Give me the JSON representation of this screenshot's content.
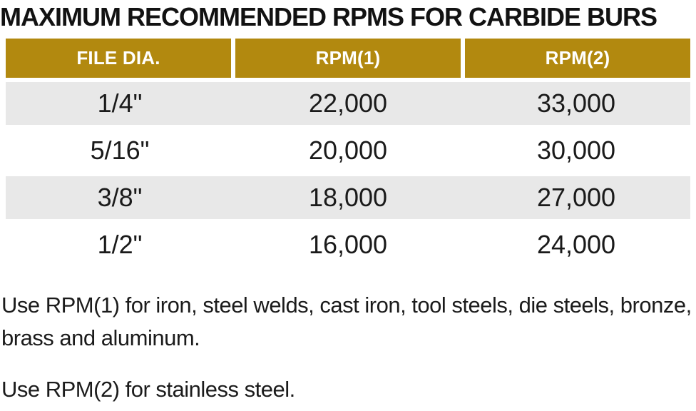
{
  "title": "MAXIMUM RECOMMENDED RPMS FOR CARBIDE BURS",
  "table": {
    "columns": [
      "FILE DIA.",
      "RPM(1)",
      "RPM(2)"
    ],
    "rows": [
      {
        "dia": "1/4\"",
        "rpm1": "22,000",
        "rpm2": "33,000"
      },
      {
        "dia": "5/16\"",
        "rpm1": "20,000",
        "rpm2": "30,000"
      },
      {
        "dia": "3/8\"",
        "rpm1": "18,000",
        "rpm2": "27,000"
      },
      {
        "dia": "1/2\"",
        "rpm1": "16,000",
        "rpm2": "24,000"
      }
    ]
  },
  "notes": [
    "Use RPM(1) for iron, steel welds, cast iron, tool steels, die steels, bronze, brass and aluminum.",
    "Use RPM(2) for stainless steel."
  ],
  "colors": {
    "header_bg": "#B2890F",
    "row_alt_bg": "#E8E8E8",
    "header_text": "#FFFFFF",
    "body_text": "#1A1A1A"
  },
  "chart_data": {
    "type": "table",
    "title": "MAXIMUM RECOMMENDED RPMS FOR CARBIDE BURS",
    "columns": [
      "FILE DIA.",
      "RPM(1)",
      "RPM(2)"
    ],
    "rows": [
      [
        "1/4\"",
        "22,000",
        "33,000"
      ],
      [
        "5/16\"",
        "20,000",
        "30,000"
      ],
      [
        "3/8\"",
        "18,000",
        "27,000"
      ],
      [
        "1/2\"",
        "16,000",
        "24,000"
      ]
    ]
  }
}
